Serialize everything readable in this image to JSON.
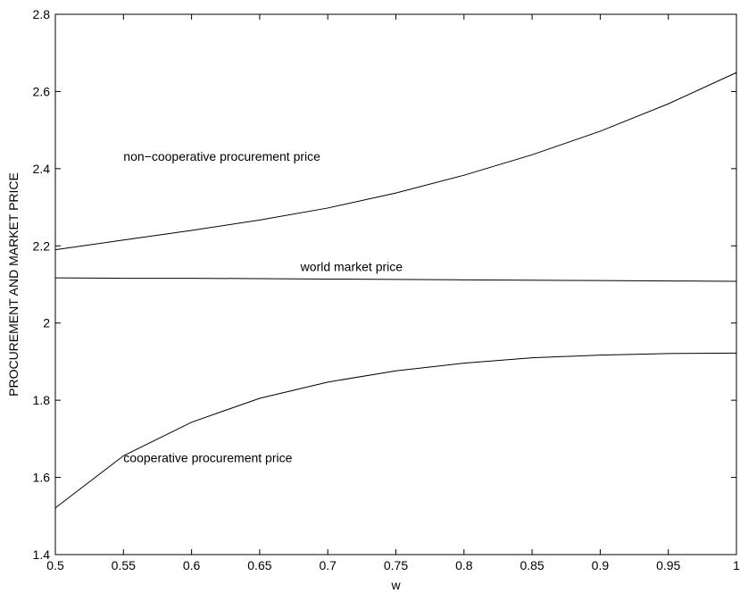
{
  "chart_data": {
    "type": "line",
    "title": "",
    "xlabel": "w",
    "ylabel": "PROCUREMENT AND MARKET PRICE",
    "xlim": [
      0.5,
      1.0
    ],
    "ylim": [
      1.4,
      2.8
    ],
    "grid": false,
    "x_ticks": [
      "0.5",
      "0.55",
      "0.6",
      "0.65",
      "0.7",
      "0.75",
      "0.8",
      "0.85",
      "0.9",
      "0.95",
      "1"
    ],
    "y_ticks": [
      "1.4",
      "1.6",
      "1.8",
      "2",
      "2.2",
      "2.4",
      "2.6",
      "2.8"
    ],
    "x": [
      0.5,
      0.55,
      0.6,
      0.65,
      0.7,
      0.75,
      0.8,
      0.85,
      0.9,
      0.95,
      1.0
    ],
    "series": [
      {
        "values": [
          2.19,
          2.215,
          2.24,
          2.267,
          2.298,
          2.337,
          2.383,
          2.436,
          2.497,
          2.568,
          2.649
        ]
      },
      {
        "values": [
          2.117,
          2.116,
          2.116,
          2.115,
          2.114,
          2.113,
          2.112,
          2.111,
          2.11,
          2.109,
          2.108
        ]
      },
      {
        "values": [
          1.521,
          1.656,
          1.743,
          1.805,
          1.847,
          1.876,
          1.896,
          1.91,
          1.917,
          1.921,
          1.922
        ]
      }
    ],
    "annotations": [
      {
        "text": "non−cooperative procurement  price",
        "x": 0.55,
        "y": 2.42
      },
      {
        "text": "world market price",
        "x": 0.68,
        "y": 2.135
      },
      {
        "text": "cooperative procurement  price",
        "x": 0.55,
        "y": 1.64
      }
    ]
  }
}
